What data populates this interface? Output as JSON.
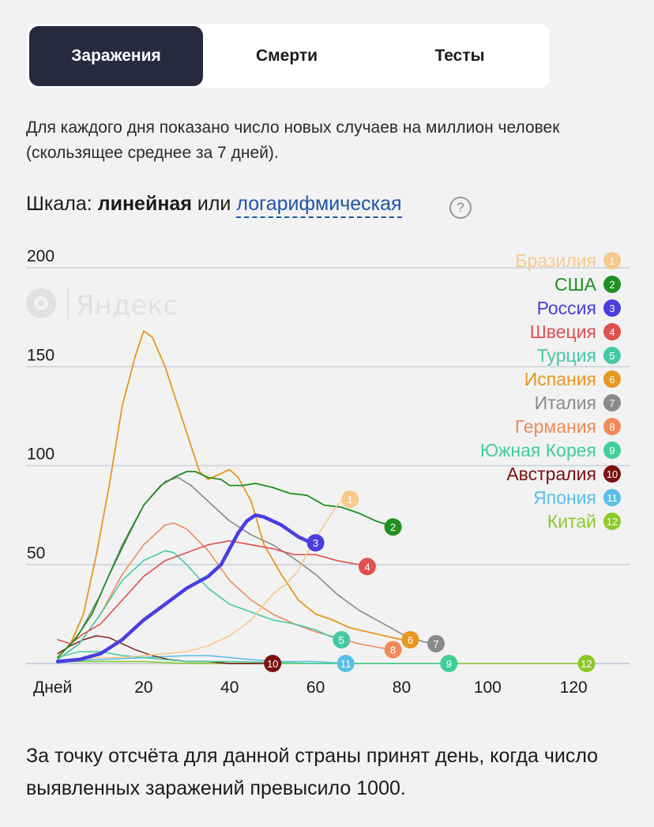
{
  "tabs": [
    {
      "label": "Заражения",
      "active": true
    },
    {
      "label": "Смерти",
      "active": false
    },
    {
      "label": "Тесты",
      "active": false
    }
  ],
  "description": "Для каждого дня показано число новых случаев на миллион человек (скользящее среднее за 7 дней).",
  "scale": {
    "prefix": "Шкала:",
    "current": "линейная",
    "or": "или",
    "alternative": "логарифмическая",
    "help_icon": "?"
  },
  "watermark": "Яндекс",
  "footnote": "За точку отсчёта для данной страны принят день, когда число выявленных заражений превысило 1000.",
  "chart_data": {
    "type": "line",
    "xlabel": "Дней",
    "x_ticks": [
      20,
      40,
      60,
      80,
      100,
      120
    ],
    "y_ticks": [
      50,
      100,
      150,
      200
    ],
    "xlim": [
      0,
      133
    ],
    "ylim": [
      0,
      200
    ],
    "grid": true,
    "legend_position": "top-right",
    "series": [
      {
        "name": "Бразилия",
        "rank": 1,
        "color": "#f7c98b",
        "width": 1.6,
        "points": [
          [
            1,
            2
          ],
          [
            5,
            2
          ],
          [
            10,
            3
          ],
          [
            15,
            3
          ],
          [
            20,
            4
          ],
          [
            25,
            5
          ],
          [
            30,
            6
          ],
          [
            35,
            9
          ],
          [
            40,
            14
          ],
          [
            45,
            22
          ],
          [
            50,
            35
          ],
          [
            53,
            40
          ],
          [
            56,
            47
          ],
          [
            59,
            60
          ],
          [
            62,
            70
          ],
          [
            65,
            80
          ],
          [
            67,
            84
          ],
          [
            68,
            83
          ]
        ]
      },
      {
        "name": "США",
        "rank": 2,
        "color": "#1f8f1f",
        "width": 1.8,
        "points": [
          [
            0,
            3
          ],
          [
            4,
            12
          ],
          [
            8,
            25
          ],
          [
            12,
            45
          ],
          [
            16,
            63
          ],
          [
            20,
            80
          ],
          [
            24,
            90
          ],
          [
            27,
            94
          ],
          [
            30,
            97
          ],
          [
            32,
            97
          ],
          [
            35,
            94
          ],
          [
            38,
            93
          ],
          [
            40,
            90
          ],
          [
            43,
            90
          ],
          [
            46,
            91
          ],
          [
            50,
            89
          ],
          [
            54,
            86
          ],
          [
            58,
            85
          ],
          [
            62,
            80
          ],
          [
            66,
            79
          ],
          [
            70,
            76
          ],
          [
            74,
            72
          ],
          [
            77,
            70
          ],
          [
            78,
            69
          ]
        ]
      },
      {
        "name": "Россия",
        "rank": 3,
        "color": "#4a3ee0",
        "width": 4.5,
        "points": [
          [
            0,
            1
          ],
          [
            5,
            2
          ],
          [
            10,
            5
          ],
          [
            15,
            12
          ],
          [
            20,
            22
          ],
          [
            25,
            30
          ],
          [
            30,
            38
          ],
          [
            35,
            44
          ],
          [
            38,
            50
          ],
          [
            40,
            58
          ],
          [
            42,
            66
          ],
          [
            44,
            72
          ],
          [
            46,
            75
          ],
          [
            48,
            74
          ],
          [
            50,
            72
          ],
          [
            52,
            70
          ],
          [
            54,
            67
          ],
          [
            56,
            64
          ],
          [
            58,
            62
          ],
          [
            60,
            61
          ]
        ]
      },
      {
        "name": "Швеция",
        "rank": 4,
        "color": "#e05050",
        "width": 1.6,
        "points": [
          [
            0,
            12
          ],
          [
            3,
            10
          ],
          [
            6,
            15
          ],
          [
            10,
            20
          ],
          [
            15,
            32
          ],
          [
            20,
            44
          ],
          [
            25,
            52
          ],
          [
            30,
            56
          ],
          [
            35,
            60
          ],
          [
            40,
            62
          ],
          [
            45,
            60
          ],
          [
            50,
            58
          ],
          [
            55,
            55
          ],
          [
            60,
            55
          ],
          [
            65,
            52
          ],
          [
            70,
            50
          ],
          [
            72,
            49
          ]
        ]
      },
      {
        "name": "Турция",
        "rank": 5,
        "color": "#45c9a5",
        "width": 1.6,
        "points": [
          [
            0,
            2
          ],
          [
            5,
            10
          ],
          [
            10,
            25
          ],
          [
            15,
            42
          ],
          [
            20,
            52
          ],
          [
            25,
            57
          ],
          [
            27,
            56
          ],
          [
            30,
            50
          ],
          [
            35,
            38
          ],
          [
            40,
            30
          ],
          [
            45,
            26
          ],
          [
            50,
            22
          ],
          [
            55,
            20
          ],
          [
            60,
            17
          ],
          [
            63,
            14
          ],
          [
            66,
            12
          ]
        ]
      },
      {
        "name": "Испания",
        "rank": 6,
        "color": "#e8961f",
        "width": 1.8,
        "points": [
          [
            0,
            3
          ],
          [
            3,
            10
          ],
          [
            6,
            25
          ],
          [
            9,
            55
          ],
          [
            12,
            90
          ],
          [
            15,
            130
          ],
          [
            18,
            155
          ],
          [
            20,
            168
          ],
          [
            22,
            165
          ],
          [
            25,
            150
          ],
          [
            28,
            130
          ],
          [
            31,
            110
          ],
          [
            33,
            97
          ],
          [
            35,
            93
          ],
          [
            37,
            95
          ],
          [
            40,
            98
          ],
          [
            42,
            94
          ],
          [
            45,
            82
          ],
          [
            48,
            60
          ],
          [
            52,
            45
          ],
          [
            56,
            32
          ],
          [
            60,
            25
          ],
          [
            64,
            22
          ],
          [
            68,
            18
          ],
          [
            72,
            16
          ],
          [
            76,
            14
          ],
          [
            80,
            12
          ],
          [
            82,
            12
          ]
        ]
      },
      {
        "name": "Италия",
        "rank": 7,
        "color": "#8a8a8a",
        "width": 1.6,
        "points": [
          [
            0,
            3
          ],
          [
            5,
            15
          ],
          [
            10,
            35
          ],
          [
            15,
            60
          ],
          [
            20,
            80
          ],
          [
            25,
            92
          ],
          [
            28,
            94
          ],
          [
            31,
            90
          ],
          [
            35,
            82
          ],
          [
            40,
            72
          ],
          [
            45,
            65
          ],
          [
            50,
            60
          ],
          [
            55,
            53
          ],
          [
            60,
            45
          ],
          [
            65,
            35
          ],
          [
            70,
            27
          ],
          [
            75,
            21
          ],
          [
            80,
            15
          ],
          [
            85,
            11
          ],
          [
            88,
            10
          ]
        ]
      },
      {
        "name": "Германия",
        "rank": 8,
        "color": "#ef8a5a",
        "width": 1.6,
        "points": [
          [
            0,
            2
          ],
          [
            5,
            10
          ],
          [
            10,
            25
          ],
          [
            15,
            45
          ],
          [
            20,
            60
          ],
          [
            25,
            70
          ],
          [
            27,
            71
          ],
          [
            30,
            68
          ],
          [
            35,
            57
          ],
          [
            40,
            42
          ],
          [
            45,
            32
          ],
          [
            50,
            25
          ],
          [
            55,
            20
          ],
          [
            60,
            16
          ],
          [
            65,
            13
          ],
          [
            70,
            10
          ],
          [
            75,
            8
          ],
          [
            78,
            7
          ]
        ]
      },
      {
        "name": "Южная Корея",
        "rank": 9,
        "color": "#3fcf9a",
        "width": 1.4,
        "points": [
          [
            0,
            3
          ],
          [
            5,
            6
          ],
          [
            10,
            6
          ],
          [
            15,
            4
          ],
          [
            20,
            3
          ],
          [
            25,
            2
          ],
          [
            30,
            1
          ],
          [
            40,
            1
          ],
          [
            60,
            0
          ],
          [
            80,
            0
          ],
          [
            91,
            0
          ]
        ]
      },
      {
        "name": "Австралия",
        "rank": 10,
        "color": "#7a1010",
        "width": 1.4,
        "points": [
          [
            0,
            5
          ],
          [
            3,
            9
          ],
          [
            6,
            12
          ],
          [
            9,
            14
          ],
          [
            12,
            13
          ],
          [
            15,
            10
          ],
          [
            18,
            7
          ],
          [
            22,
            4
          ],
          [
            26,
            2
          ],
          [
            30,
            1
          ],
          [
            35,
            1
          ],
          [
            40,
            0
          ],
          [
            50,
            0
          ]
        ]
      },
      {
        "name": "Япония",
        "rank": 11,
        "color": "#5abfe8",
        "width": 1.4,
        "points": [
          [
            0,
            1
          ],
          [
            10,
            2
          ],
          [
            20,
            3
          ],
          [
            30,
            4
          ],
          [
            35,
            4
          ],
          [
            40,
            3
          ],
          [
            50,
            1
          ],
          [
            60,
            1
          ],
          [
            67,
            0
          ]
        ]
      },
      {
        "name": "Китай",
        "rank": 12,
        "color": "#8cc92a",
        "width": 1.4,
        "points": [
          [
            0,
            1
          ],
          [
            10,
            1
          ],
          [
            20,
            1
          ],
          [
            30,
            0
          ],
          [
            40,
            0
          ],
          [
            60,
            0
          ],
          [
            80,
            0
          ],
          [
            100,
            0
          ],
          [
            123,
            0
          ]
        ]
      }
    ]
  }
}
